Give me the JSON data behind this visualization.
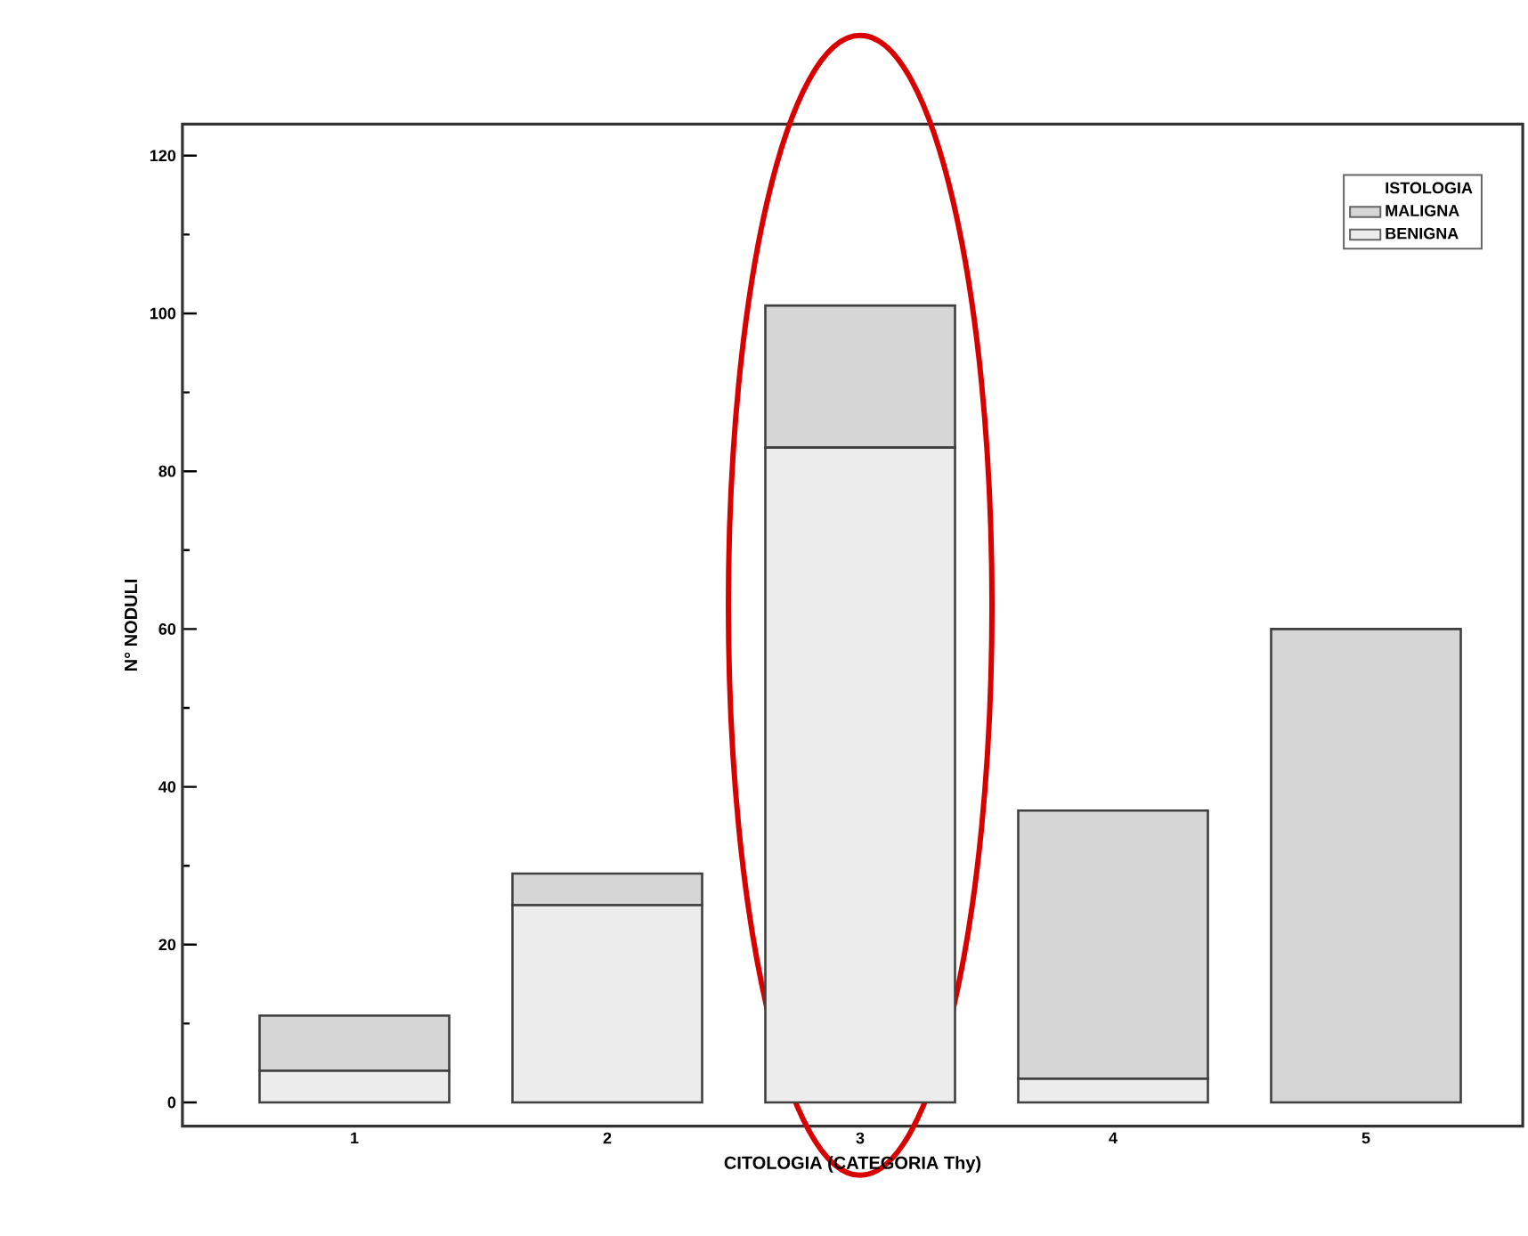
{
  "chart_data": {
    "type": "bar",
    "stacked": true,
    "xlabel": "CITOLOGIA (CATEGORIA Thy)",
    "ylabel": "N° NODULI",
    "legend_title": "ISTOLOGIA",
    "categories": [
      "1",
      "2",
      "3",
      "4",
      "5"
    ],
    "series": [
      {
        "name": "BENIGNA",
        "color": "#ececec",
        "values": [
          4,
          25,
          83,
          3,
          0
        ]
      },
      {
        "name": "MALIGNA",
        "color": "#d6d6d6",
        "values": [
          7,
          4,
          18,
          34,
          60
        ]
      }
    ],
    "ylim": [
      -3,
      124
    ],
    "yticks": [
      0,
      {
        "value": 10,
        "label": null
      },
      20,
      {
        "value": 30,
        "label": null
      },
      40,
      {
        "value": 50,
        "label": null
      },
      60,
      {
        "value": 70,
        "label": null
      },
      80,
      {
        "value": 90,
        "label": null
      },
      100,
      {
        "value": 110,
        "label": null
      },
      120
    ],
    "legend": "top right",
    "grid": false
  }
}
